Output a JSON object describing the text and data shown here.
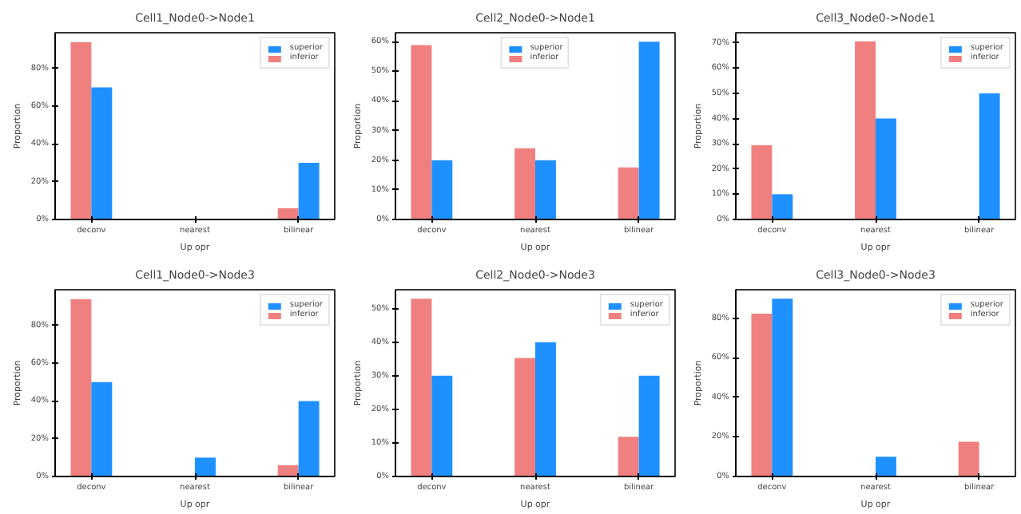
{
  "chart_data": [
    {
      "type": "bar",
      "title": "Cell1_Node0->Node1",
      "xlabel": "Up opr",
      "ylabel": "Proportion",
      "categories": [
        "deconv",
        "nearest",
        "bilinear"
      ],
      "series": [
        {
          "name": "inferior",
          "color": "#f08080",
          "values": [
            94,
            0,
            6
          ]
        },
        {
          "name": "superior",
          "color": "#1e90ff",
          "values": [
            70,
            0,
            30
          ]
        }
      ],
      "ylim": [
        0,
        99
      ],
      "yticks": [
        {
          "value": 0,
          "label": "0%"
        },
        {
          "value": 20,
          "label": "20%"
        },
        {
          "value": 40,
          "label": "40%"
        },
        {
          "value": 60,
          "label": "60%"
        },
        {
          "value": 80,
          "label": "80%"
        }
      ],
      "grid": false,
      "legend": "top right"
    },
    {
      "type": "bar",
      "title": "Cell2_Node0->Node1",
      "xlabel": "Up opr",
      "ylabel": "Proportion",
      "categories": [
        "deconv",
        "nearest",
        "bilinear"
      ],
      "series": [
        {
          "name": "inferior",
          "color": "#f08080",
          "values": [
            58.8,
            24,
            17.6
          ]
        },
        {
          "name": "superior",
          "color": "#1e90ff",
          "values": [
            20,
            20,
            60
          ]
        }
      ],
      "ylim": [
        0,
        63
      ],
      "yticks": [
        {
          "value": 0,
          "label": "0%"
        },
        {
          "value": 10,
          "label": "10%"
        },
        {
          "value": 20,
          "label": "20%"
        },
        {
          "value": 30,
          "label": "30%"
        },
        {
          "value": 40,
          "label": "40%"
        },
        {
          "value": 50,
          "label": "50%"
        },
        {
          "value": 60,
          "label": "60%"
        }
      ],
      "grid": false,
      "legend": "top"
    },
    {
      "type": "bar",
      "title": "Cell3_Node0->Node1",
      "xlabel": "Up opr",
      "ylabel": "Proportion",
      "categories": [
        "deconv",
        "nearest",
        "bilinear"
      ],
      "series": [
        {
          "name": "inferior",
          "color": "#f08080",
          "values": [
            29.4,
            70.6,
            0
          ]
        },
        {
          "name": "superior",
          "color": "#1e90ff",
          "values": [
            10,
            40,
            50
          ]
        }
      ],
      "ylim": [
        0,
        74
      ],
      "yticks": [
        {
          "value": 0,
          "label": "0%"
        },
        {
          "value": 10,
          "label": "10%"
        },
        {
          "value": 20,
          "label": "20%"
        },
        {
          "value": 30,
          "label": "30%"
        },
        {
          "value": 40,
          "label": "40%"
        },
        {
          "value": 50,
          "label": "50%"
        },
        {
          "value": 60,
          "label": "60%"
        },
        {
          "value": 70,
          "label": "70%"
        }
      ],
      "grid": false,
      "legend": "top right"
    },
    {
      "type": "bar",
      "title": "Cell1_Node0->Node3",
      "xlabel": "Up opr",
      "ylabel": "Proportion",
      "categories": [
        "deconv",
        "nearest",
        "bilinear"
      ],
      "series": [
        {
          "name": "inferior",
          "color": "#f08080",
          "values": [
            94,
            0,
            6
          ]
        },
        {
          "name": "superior",
          "color": "#1e90ff",
          "values": [
            50,
            10,
            40
          ]
        }
      ],
      "ylim": [
        0,
        99
      ],
      "yticks": [
        {
          "value": 0,
          "label": "0%"
        },
        {
          "value": 20,
          "label": "20%"
        },
        {
          "value": 40,
          "label": "40%"
        },
        {
          "value": 60,
          "label": "60%"
        },
        {
          "value": 80,
          "label": "80%"
        }
      ],
      "grid": false,
      "legend": "top right"
    },
    {
      "type": "bar",
      "title": "Cell2_Node0->Node3",
      "xlabel": "Up opr",
      "ylabel": "Proportion",
      "categories": [
        "deconv",
        "nearest",
        "bilinear"
      ],
      "series": [
        {
          "name": "inferior",
          "color": "#f08080",
          "values": [
            52.9,
            35.3,
            11.8
          ]
        },
        {
          "name": "superior",
          "color": "#1e90ff",
          "values": [
            30,
            40,
            30
          ]
        }
      ],
      "ylim": [
        0,
        55.6
      ],
      "yticks": [
        {
          "value": 0,
          "label": "0%"
        },
        {
          "value": 10,
          "label": "10%"
        },
        {
          "value": 20,
          "label": "20%"
        },
        {
          "value": 30,
          "label": "30%"
        },
        {
          "value": 40,
          "label": "40%"
        },
        {
          "value": 50,
          "label": "50%"
        }
      ],
      "grid": false,
      "legend": "top right"
    },
    {
      "type": "bar",
      "title": "Cell3_Node0->Node3",
      "xlabel": "Up opr",
      "ylabel": "Proportion",
      "categories": [
        "deconv",
        "nearest",
        "bilinear"
      ],
      "series": [
        {
          "name": "inferior",
          "color": "#f08080",
          "values": [
            82.4,
            0,
            17.6
          ]
        },
        {
          "name": "superior",
          "color": "#1e90ff",
          "values": [
            90,
            10,
            0
          ]
        }
      ],
      "ylim": [
        0,
        94.5
      ],
      "yticks": [
        {
          "value": 0,
          "label": "0%"
        },
        {
          "value": 20,
          "label": "20%"
        },
        {
          "value": 40,
          "label": "40%"
        },
        {
          "value": 60,
          "label": "60%"
        },
        {
          "value": 80,
          "label": "80%"
        }
      ],
      "grid": false,
      "legend": "top right"
    }
  ]
}
